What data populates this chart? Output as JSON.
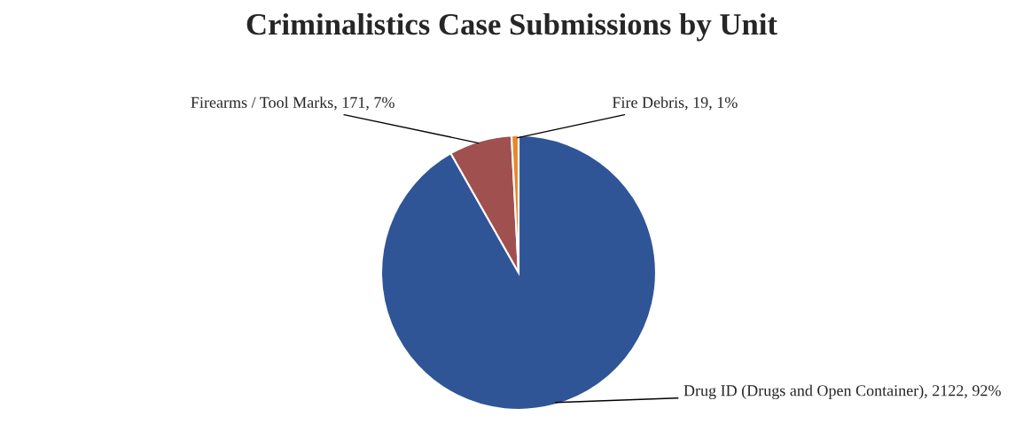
{
  "chart_data": {
    "type": "pie",
    "title": "Criminalistics Case Submissions by Unit",
    "categories": [
      "Drug ID (Drugs and Open Container)",
      "Firearms / Tool Marks",
      "Fire Debris"
    ],
    "values": [
      2122,
      171,
      19
    ],
    "value_labels": [
      "2122, 92%",
      "171, 7%",
      "19, 1%"
    ],
    "colors": [
      "#2f5597",
      "#a0504f",
      "#e8872b"
    ],
    "legend": false
  }
}
